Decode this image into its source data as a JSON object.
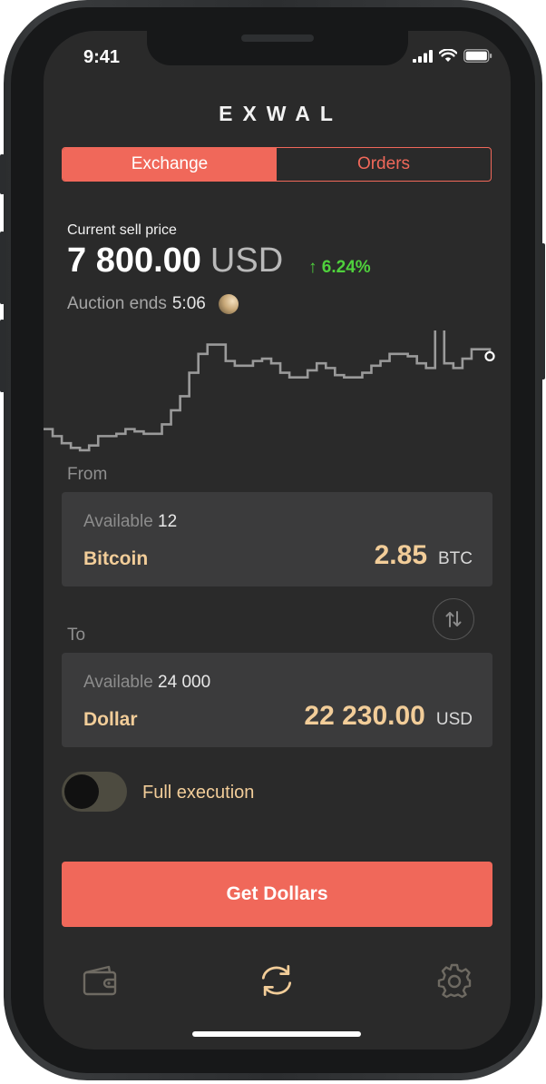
{
  "status_bar": {
    "time": "9:41",
    "icons": [
      "signal-icon",
      "wifi-icon",
      "battery-icon"
    ]
  },
  "app": {
    "logo": "EXWAL"
  },
  "tabs": {
    "exchange": "Exchange",
    "orders": "Orders",
    "active": "Exchange"
  },
  "price": {
    "label": "Current sell price",
    "value": "7 800.00",
    "currency": "USD",
    "change": "6.24%",
    "change_icon": "arrow-up-icon",
    "change_color": "#4fd13c"
  },
  "auction": {
    "label": "Auction ends",
    "time": "5:06"
  },
  "from": {
    "label": "From",
    "available_label": "Available",
    "available_value": "12",
    "asset": "Bitcoin",
    "amount": "2.85",
    "unit": "BTC"
  },
  "to": {
    "label": "To",
    "available_label": "Available",
    "available_value": "24 000",
    "asset": "Dollar",
    "amount": "22 230.00",
    "unit": "USD"
  },
  "swap_icon": "swap-icon",
  "full_execution": {
    "label": "Full execution",
    "enabled": false
  },
  "cta": {
    "label": "Get Dollars"
  },
  "bottom_nav": [
    "wallet-icon",
    "exchange-icon",
    "settings-icon"
  ],
  "colors": {
    "accent": "#f0685a",
    "gold": "#f2cd99",
    "background": "#2a2a2a",
    "card": "#3b3b3c",
    "positive": "#4fd13c"
  },
  "chart_data": {
    "type": "line",
    "style": "step",
    "x": [
      0,
      1,
      2,
      3,
      4,
      5,
      6,
      7,
      8,
      9,
      10,
      11,
      12,
      13,
      14,
      15,
      16,
      17,
      18,
      19,
      20,
      21,
      22,
      23,
      24,
      25,
      26,
      27,
      28,
      29,
      30,
      31,
      32,
      33,
      34,
      35,
      36,
      37,
      38,
      39,
      40,
      41,
      42,
      43,
      44,
      45,
      46,
      47,
      48,
      49
    ],
    "values": [
      7520,
      7505,
      7490,
      7480,
      7475,
      7485,
      7505,
      7505,
      7510,
      7520,
      7515,
      7510,
      7510,
      7530,
      7560,
      7590,
      7640,
      7680,
      7700,
      7700,
      7665,
      7655,
      7655,
      7665,
      7670,
      7660,
      7640,
      7630,
      7630,
      7645,
      7660,
      7650,
      7635,
      7630,
      7630,
      7640,
      7655,
      7665,
      7680,
      7680,
      7675,
      7660,
      7650,
      7800,
      7660,
      7650,
      7670,
      7690,
      7690,
      7675
    ],
    "ylim": [
      7440,
      7730
    ],
    "grid": false,
    "legend": "none"
  }
}
